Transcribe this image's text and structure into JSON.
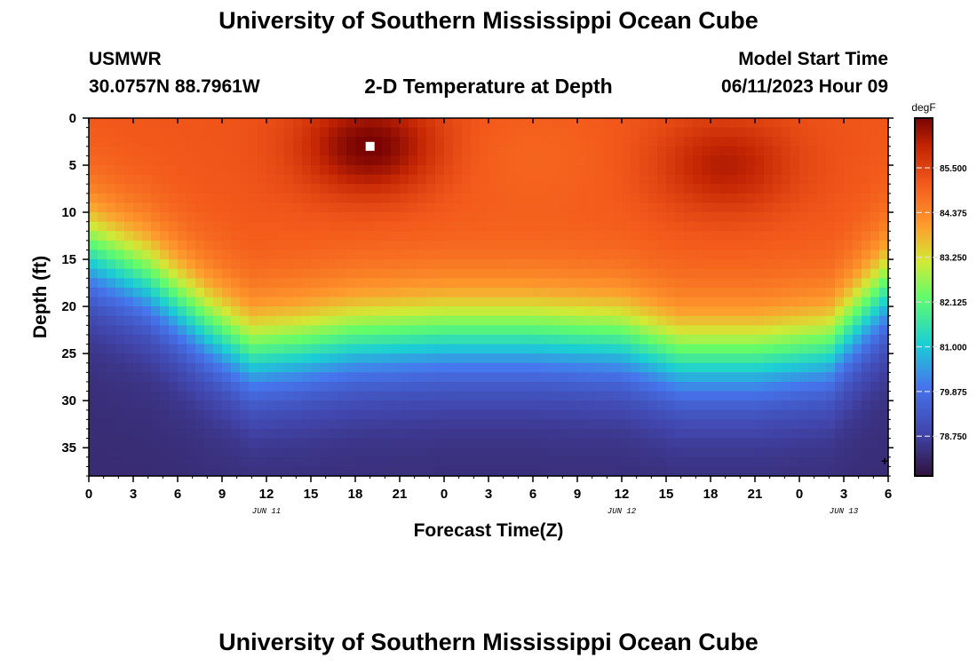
{
  "page": {
    "title": "University of Southern Mississippi Ocean Cube",
    "bottom_title": "University of Southern Mississippi Ocean Cube",
    "station": "USMWR",
    "coordinates": "30.0757N  88.7961W",
    "chart_subtitle": "2-D Temperature at Depth",
    "model_start_label": "Model Start Time",
    "model_start_value": "06/11/2023 Hour 09"
  },
  "chart_data": {
    "type": "heatmap",
    "title": "2-D Temperature at Depth",
    "xlabel": "Forecast Time(Z)",
    "ylabel": "Depth (ft)",
    "x_hours_range": [
      0,
      54
    ],
    "x_tick_labels": [
      "0",
      "3",
      "6",
      "9",
      "12",
      "15",
      "18",
      "21",
      "0",
      "3",
      "6",
      "9",
      "12",
      "15",
      "18",
      "21",
      "0",
      "3",
      "6"
    ],
    "date_labels": [
      {
        "text": "JUN 11",
        "hour": 12
      },
      {
        "text": "JUN 12",
        "hour": 36
      },
      {
        "text": "JUN 13",
        "hour": 51
      }
    ],
    "ylim": [
      0,
      38
    ],
    "y_ticks": [
      0,
      5,
      10,
      15,
      20,
      25,
      30,
      35
    ],
    "colorbar": {
      "unit": "degF",
      "range": [
        77.75,
        86.75
      ],
      "tick_values": [
        85.5,
        84.375,
        83.25,
        82.125,
        81.0,
        79.875,
        78.75
      ],
      "tick_labels": [
        "85.500",
        "84.375",
        "83.250",
        "82.125",
        "81.000",
        "79.875",
        "78.750"
      ]
    },
    "surface_temp_degF": 85.2,
    "bottom_temp_degF": 78.3,
    "thermocline_depth_ft": [
      {
        "hour": 0,
        "depth": 14
      },
      {
        "hour": 4,
        "depth": 17
      },
      {
        "hour": 8,
        "depth": 22
      },
      {
        "hour": 11,
        "depth": 25
      },
      {
        "hour": 14,
        "depth": 24.5
      },
      {
        "hour": 18,
        "depth": 23.5
      },
      {
        "hour": 24,
        "depth": 23
      },
      {
        "hour": 30,
        "depth": 23
      },
      {
        "hour": 36,
        "depth": 23.5
      },
      {
        "hour": 40,
        "depth": 25.5
      },
      {
        "hour": 45,
        "depth": 25.5
      },
      {
        "hour": 50,
        "depth": 24.5
      },
      {
        "hour": 54,
        "depth": 18
      }
    ],
    "warm_spots": [
      {
        "hour": 19,
        "depth": 3,
        "peak_degF": 86.8
      },
      {
        "hour": 43,
        "depth": 5,
        "peak_degF": 86.2
      }
    ]
  },
  "icons": {
    "missing_data_marker": "white-square-marker",
    "corner_marker": "plus-marker"
  }
}
